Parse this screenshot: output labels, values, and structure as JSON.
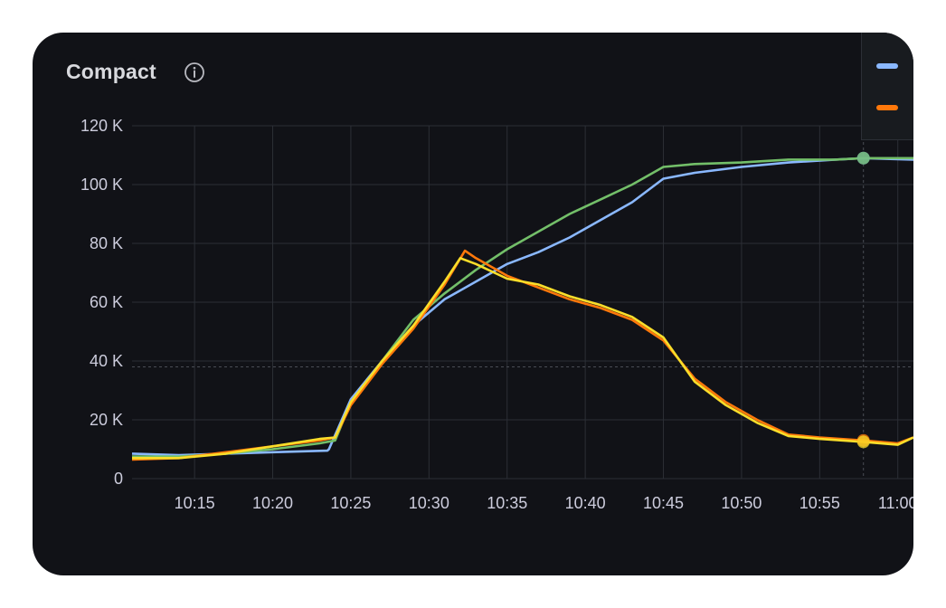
{
  "panel": {
    "title": "Compact"
  },
  "icons": {
    "info": "info-circle-icon"
  },
  "colors": {
    "background": "#111217",
    "grid": "#2c2f36",
    "axis_text": "#ccccdc"
  },
  "chart_data": {
    "type": "line",
    "title": "Compact",
    "xlabel": "",
    "ylabel": "",
    "x_unit": "minutes",
    "x_range": [
      "10:11",
      "11:01"
    ],
    "x_ticks": [
      "10:15",
      "10:20",
      "10:25",
      "10:30",
      "10:35",
      "10:40",
      "10:45",
      "10:50",
      "10:55",
      "11:00"
    ],
    "y_ticks": [
      "0",
      "20 K",
      "40 K",
      "60 K",
      "80 K",
      "100 K",
      "120 K"
    ],
    "ylim": [
      0,
      120000
    ],
    "grid": true,
    "legend_position": "top-right",
    "hover_time": "10:57.8",
    "series": [
      {
        "color": "#8ab8ff",
        "points": [
          [
            "10:11",
            8500
          ],
          [
            "10:14",
            8000
          ],
          [
            "10:17",
            8500
          ],
          [
            "10:20",
            9000
          ],
          [
            "10:23.5",
            9500
          ],
          [
            "10:23.6",
            10000
          ],
          [
            "10:25",
            27000
          ],
          [
            "10:27",
            40000
          ],
          [
            "10:29",
            52000
          ],
          [
            "10:31",
            61000
          ],
          [
            "10:33",
            67000
          ],
          [
            "10:35",
            73000
          ],
          [
            "10:37",
            77000
          ],
          [
            "10:39",
            82000
          ],
          [
            "10:41",
            88000
          ],
          [
            "10:43",
            94000
          ],
          [
            "10:45",
            102000
          ],
          [
            "10:47",
            104000
          ],
          [
            "10:50",
            106000
          ],
          [
            "10:53",
            107500
          ],
          [
            "10:56",
            108500
          ],
          [
            "10:57.8",
            109000
          ],
          [
            "11:01",
            108500
          ]
        ]
      },
      {
        "color": "#73bf69",
        "points": [
          [
            "10:11",
            7500
          ],
          [
            "10:14",
            7500
          ],
          [
            "10:17",
            8500
          ],
          [
            "10:20",
            10000
          ],
          [
            "10:23",
            12000
          ],
          [
            "10:24",
            13000
          ],
          [
            "10:25",
            26000
          ],
          [
            "10:27",
            40000
          ],
          [
            "10:29",
            54000
          ],
          [
            "10:31",
            63000
          ],
          [
            "10:33",
            71000
          ],
          [
            "10:35",
            78000
          ],
          [
            "10:37",
            84000
          ],
          [
            "10:39",
            90000
          ],
          [
            "10:41",
            95000
          ],
          [
            "10:43",
            100000
          ],
          [
            "10:45",
            106000
          ],
          [
            "10:47",
            107000
          ],
          [
            "10:50",
            107500
          ],
          [
            "10:53",
            108500
          ],
          [
            "10:56",
            108500
          ],
          [
            "10:57.8",
            109000
          ],
          [
            "11:01",
            109000
          ]
        ]
      },
      {
        "color": "#ff780a",
        "points": [
          [
            "10:11",
            6500
          ],
          [
            "10:14",
            7000
          ],
          [
            "10:17",
            9000
          ],
          [
            "10:20",
            11000
          ],
          [
            "10:23",
            13000
          ],
          [
            "10:24",
            14000
          ],
          [
            "10:25",
            25000
          ],
          [
            "10:27",
            39000
          ],
          [
            "10:29",
            51000
          ],
          [
            "10:31",
            66000
          ],
          [
            "10:32.3",
            77500
          ],
          [
            "10:33",
            75000
          ],
          [
            "10:35",
            69000
          ],
          [
            "10:37",
            65000
          ],
          [
            "10:39",
            61000
          ],
          [
            "10:41",
            58000
          ],
          [
            "10:43",
            54000
          ],
          [
            "10:45",
            47000
          ],
          [
            "10:47",
            34000
          ],
          [
            "10:49",
            26000
          ],
          [
            "10:51",
            20000
          ],
          [
            "10:53",
            15000
          ],
          [
            "10:55",
            14000
          ],
          [
            "10:57.8",
            13000
          ],
          [
            "11:00",
            12000
          ],
          [
            "11:01",
            14000
          ]
        ]
      },
      {
        "color": "#fade2a",
        "points": [
          [
            "10:11",
            7000
          ],
          [
            "10:14",
            7000
          ],
          [
            "10:17",
            8500
          ],
          [
            "10:20",
            11000
          ],
          [
            "10:23",
            13500
          ],
          [
            "10:24",
            14000
          ],
          [
            "10:25",
            26000
          ],
          [
            "10:27",
            40000
          ],
          [
            "10:29",
            52000
          ],
          [
            "10:31",
            67000
          ],
          [
            "10:32",
            75000
          ],
          [
            "10:33",
            73000
          ],
          [
            "10:35",
            68000
          ],
          [
            "10:37",
            66000
          ],
          [
            "10:39",
            62000
          ],
          [
            "10:41",
            59000
          ],
          [
            "10:43",
            55000
          ],
          [
            "10:45",
            48000
          ],
          [
            "10:47",
            33000
          ],
          [
            "10:49",
            25000
          ],
          [
            "10:51",
            19000
          ],
          [
            "10:53",
            14500
          ],
          [
            "10:55",
            13500
          ],
          [
            "10:57.8",
            12500
          ],
          [
            "11:00",
            11500
          ],
          [
            "11:01",
            14000
          ]
        ]
      }
    ]
  }
}
